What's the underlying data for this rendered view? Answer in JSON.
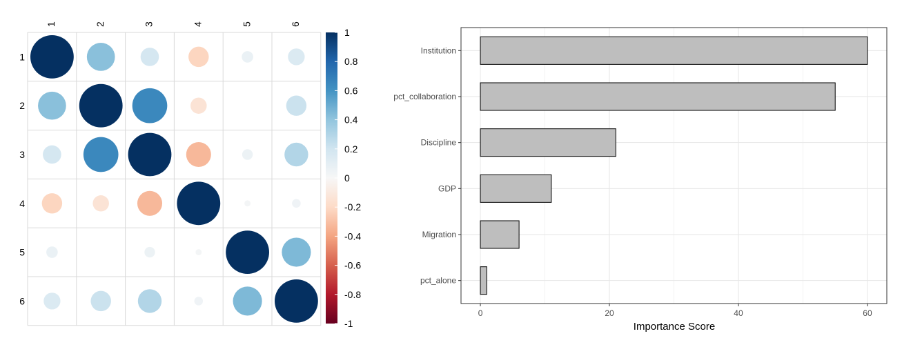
{
  "chart_data": [
    {
      "type": "heatmap",
      "subtype": "correlation-circle-plot",
      "title": "",
      "row_labels": [
        "1",
        "2",
        "3",
        "4",
        "5",
        "6"
      ],
      "col_labels": [
        "1",
        "2",
        "3",
        "4",
        "5",
        "6"
      ],
      "matrix": [
        [
          1.0,
          0.42,
          0.18,
          -0.22,
          0.07,
          0.15
        ],
        [
          0.42,
          1.0,
          0.65,
          -0.14,
          0.0,
          0.22
        ],
        [
          0.18,
          0.65,
          1.0,
          -0.33,
          0.06,
          0.3
        ],
        [
          -0.22,
          -0.14,
          -0.33,
          1.0,
          0.02,
          0.04
        ],
        [
          0.07,
          0.0,
          0.06,
          0.02,
          1.0,
          0.45
        ],
        [
          0.15,
          0.22,
          0.3,
          0.04,
          0.45,
          1.0
        ]
      ],
      "colorbar": {
        "range": [
          -1,
          1
        ],
        "tick_values": [
          1,
          0.8,
          0.6,
          0.4,
          0.2,
          0,
          -0.2,
          -0.4,
          -0.6,
          -0.8,
          -1
        ],
        "tick_labels": [
          "1",
          "0.8",
          "0.6",
          "0.4",
          "0.2",
          "0",
          "-0.2",
          "-0.4",
          "-0.6",
          "-0.8",
          "-1"
        ],
        "colors": [
          "#67001f",
          "#b2182b",
          "#d6604d",
          "#f4a582",
          "#fddbc7",
          "#f7f7f7",
          "#d1e5f0",
          "#92c5de",
          "#4393c3",
          "#2166ac",
          "#053061"
        ]
      },
      "grid": true
    },
    {
      "type": "bar",
      "orientation": "horizontal",
      "title": "",
      "categories": [
        "Institution",
        "pct_collaboration",
        "Discipline",
        "GDP",
        "Migration",
        "pct_alone"
      ],
      "values": [
        60,
        55,
        21,
        11,
        6,
        1
      ],
      "xlabel": "Importance Score",
      "ylabel": "",
      "xlim": [
        -3,
        63
      ],
      "x_ticks": [
        0,
        20,
        40,
        60
      ],
      "x_tick_labels": [
        "0",
        "20",
        "40",
        "60"
      ],
      "bar_fill": "#bebebe",
      "bar_stroke": "#000000",
      "grid": true
    }
  ]
}
